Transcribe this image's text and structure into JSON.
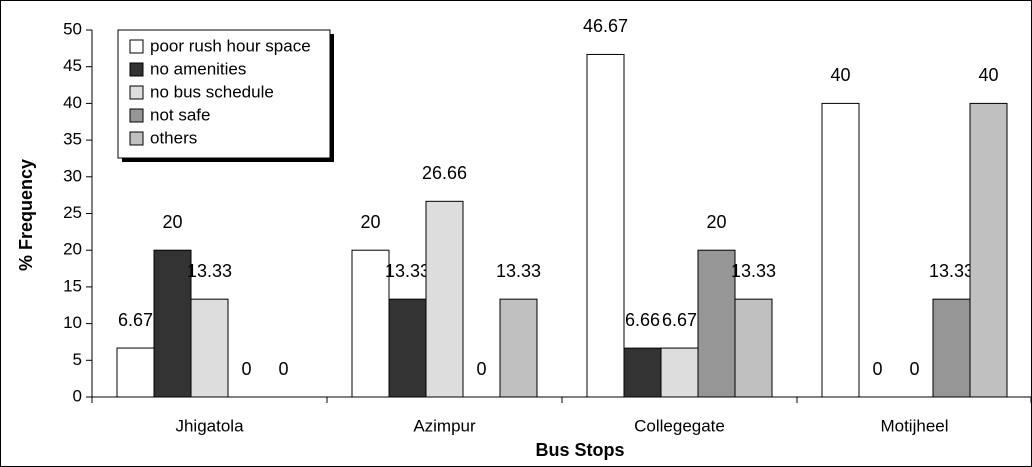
{
  "chart_data": {
    "type": "bar",
    "x_label": "Bus Stops",
    "y_label": "% Frequency",
    "categories": [
      "Jhigatola",
      "Azimpur",
      "Collegegate",
      "Motijheel"
    ],
    "series": [
      {
        "name": "poor rush hour space",
        "color": "#ffffff",
        "values": [
          6.67,
          20,
          46.67,
          40
        ]
      },
      {
        "name": "no amenities",
        "color": "#333333",
        "values": [
          20,
          13.33,
          6.66,
          0
        ]
      },
      {
        "name": "no bus schedule",
        "color": "#dddddd",
        "values": [
          13.33,
          26.66,
          6.67,
          0
        ]
      },
      {
        "name": "not safe",
        "color": "#969696",
        "values": [
          0,
          0,
          20,
          13.33
        ]
      },
      {
        "name": "others",
        "color": "#c0c0c0",
        "values": [
          0,
          13.33,
          13.33,
          40
        ]
      }
    ],
    "ylim": [
      0,
      50
    ],
    "yticks": [
      0,
      5,
      10,
      15,
      20,
      25,
      30,
      35,
      40,
      45,
      50
    ],
    "grid": false,
    "legend": "upper left"
  }
}
